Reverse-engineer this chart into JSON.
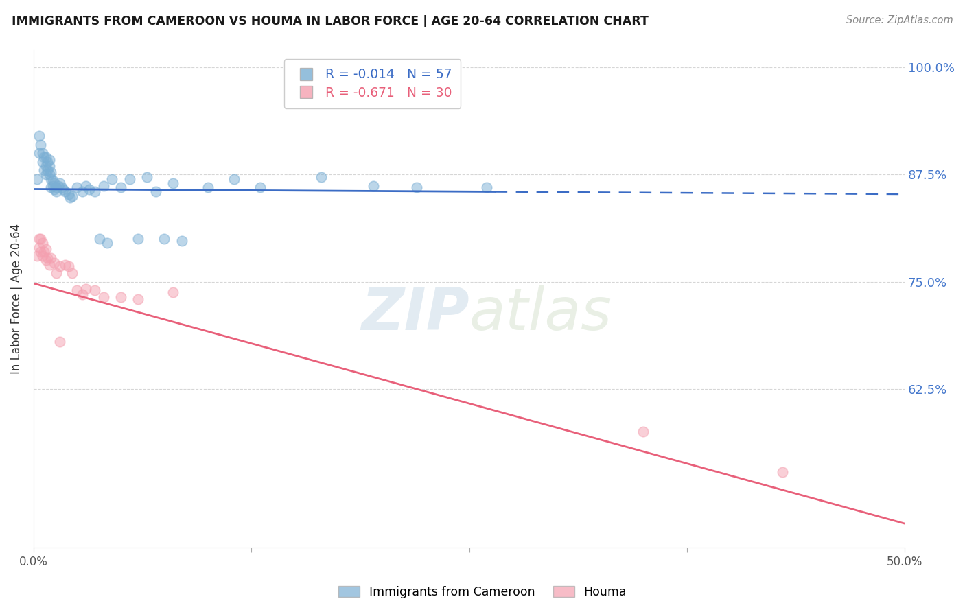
{
  "title": "IMMIGRANTS FROM CAMEROON VS HOUMA IN LABOR FORCE | AGE 20-64 CORRELATION CHART",
  "source": "Source: ZipAtlas.com",
  "ylabel": "In Labor Force | Age 20-64",
  "legend_labels": [
    "Immigrants from Cameroon",
    "Houma"
  ],
  "r_values": [
    -0.014,
    -0.671
  ],
  "n_values": [
    57,
    30
  ],
  "blue_color": "#7BAFD4",
  "pink_color": "#F4A0B0",
  "blue_line_color": "#3B6CC5",
  "pink_line_color": "#E8607A",
  "watermark_zip": "ZIP",
  "watermark_atlas": "atlas",
  "xlim": [
    0.0,
    0.5
  ],
  "ylim": [
    0.44,
    1.02
  ],
  "yticks": [
    0.625,
    0.75,
    0.875,
    1.0
  ],
  "ytick_labels": [
    "62.5%",
    "75.0%",
    "87.5%",
    "100.0%"
  ],
  "xticks": [
    0.0,
    0.125,
    0.25,
    0.375,
    0.5
  ],
  "xtick_labels": [
    "0.0%",
    "",
    "",
    "",
    "50.0%"
  ],
  "blue_x": [
    0.002,
    0.003,
    0.003,
    0.004,
    0.005,
    0.005,
    0.006,
    0.006,
    0.007,
    0.007,
    0.007,
    0.008,
    0.008,
    0.009,
    0.009,
    0.009,
    0.01,
    0.01,
    0.01,
    0.011,
    0.011,
    0.012,
    0.012,
    0.013,
    0.013,
    0.014,
    0.015,
    0.016,
    0.017,
    0.018,
    0.02,
    0.021,
    0.022,
    0.025,
    0.028,
    0.03,
    0.032,
    0.035,
    0.04,
    0.045,
    0.05,
    0.055,
    0.065,
    0.07,
    0.08,
    0.1,
    0.115,
    0.13,
    0.165,
    0.195,
    0.22,
    0.26,
    0.038,
    0.042,
    0.06,
    0.075,
    0.085
  ],
  "blue_y": [
    0.87,
    0.9,
    0.92,
    0.91,
    0.9,
    0.89,
    0.895,
    0.88,
    0.895,
    0.885,
    0.875,
    0.89,
    0.88,
    0.885,
    0.892,
    0.875,
    0.878,
    0.87,
    0.86,
    0.868,
    0.862,
    0.865,
    0.858,
    0.86,
    0.855,
    0.862,
    0.865,
    0.86,
    0.858,
    0.855,
    0.852,
    0.848,
    0.85,
    0.86,
    0.855,
    0.862,
    0.858,
    0.855,
    0.862,
    0.87,
    0.86,
    0.87,
    0.872,
    0.855,
    0.865,
    0.86,
    0.87,
    0.86,
    0.872,
    0.862,
    0.86,
    0.86,
    0.8,
    0.795,
    0.8,
    0.8,
    0.798
  ],
  "pink_x": [
    0.002,
    0.003,
    0.003,
    0.004,
    0.004,
    0.005,
    0.005,
    0.006,
    0.007,
    0.007,
    0.008,
    0.009,
    0.01,
    0.012,
    0.013,
    0.015,
    0.018,
    0.02,
    0.025,
    0.028,
    0.03,
    0.035,
    0.04,
    0.05,
    0.06,
    0.08,
    0.015,
    0.022,
    0.35,
    0.43
  ],
  "pink_y": [
    0.78,
    0.79,
    0.8,
    0.785,
    0.8,
    0.78,
    0.795,
    0.785,
    0.775,
    0.788,
    0.778,
    0.77,
    0.778,
    0.772,
    0.76,
    0.768,
    0.77,
    0.768,
    0.74,
    0.735,
    0.742,
    0.74,
    0.732,
    0.732,
    0.73,
    0.738,
    0.68,
    0.76,
    0.575,
    0.528
  ],
  "blue_trend_solid_end": 0.265,
  "blue_trend_x0": 0.0,
  "blue_trend_x1": 0.5,
  "blue_trend_y0": 0.858,
  "blue_trend_y1": 0.852,
  "pink_trend_x0": 0.0,
  "pink_trend_x1": 0.5,
  "pink_trend_y0": 0.748,
  "pink_trend_y1": 0.468
}
